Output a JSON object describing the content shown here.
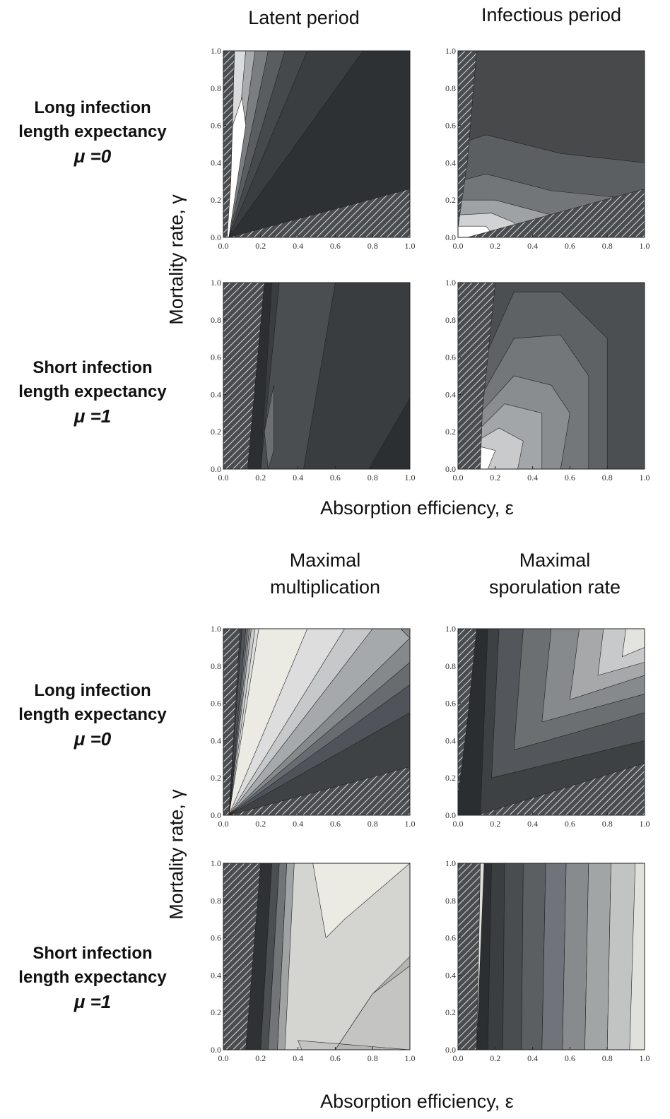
{
  "titles": {
    "latent": "Latent period",
    "infectious": "Infectious period",
    "maxmult": [
      "Maximal",
      "multiplication"
    ],
    "maxspor": [
      "Maximal",
      "sporulation rate"
    ]
  },
  "row_labels": {
    "long": [
      "Long infection",
      "length expectancy",
      "μ =0"
    ],
    "short": [
      "Short infection",
      "length expectancy",
      "μ =1"
    ]
  },
  "axis_labels": {
    "y_top": "Mortality rate, γ",
    "x_top": "Absorption efficiency, ε",
    "y_bottom": "Mortality rate, γ",
    "x_bottom": "Absorption efficiency, ε"
  },
  "chart_data": [
    {
      "type": "heatmap",
      "panel": "latent-long",
      "x_range": [
        0,
        1
      ],
      "y_range": [
        0,
        1
      ],
      "ticks": [
        "0.0",
        "0.2",
        "0.4",
        "0.6",
        "0.8",
        "1.0"
      ]
    },
    {
      "type": "heatmap",
      "panel": "infectious-long",
      "x_range": [
        0,
        1
      ],
      "y_range": [
        0,
        1
      ],
      "ticks": [
        "0.0",
        "0.2",
        "0.4",
        "0.6",
        "0.8",
        "1.0"
      ]
    },
    {
      "type": "heatmap",
      "panel": "latent-short",
      "x_range": [
        0,
        1
      ],
      "y_range": [
        0,
        1
      ],
      "ticks": [
        "0.0",
        "0.2",
        "0.4",
        "0.6",
        "0.8",
        "1.0"
      ]
    },
    {
      "type": "heatmap",
      "panel": "infectious-short",
      "x_range": [
        0,
        1
      ],
      "y_range": [
        0,
        1
      ],
      "ticks": [
        "0.0",
        "0.2",
        "0.4",
        "0.6",
        "0.8",
        "1.0"
      ]
    },
    {
      "type": "heatmap",
      "panel": "maxmult-long",
      "x_range": [
        0,
        1
      ],
      "y_range": [
        0,
        1
      ],
      "ticks": [
        "0.0",
        "0.2",
        "0.4",
        "0.6",
        "0.8",
        "1.0"
      ]
    },
    {
      "type": "heatmap",
      "panel": "maxspor-long",
      "x_range": [
        0,
        1
      ],
      "y_range": [
        0,
        1
      ],
      "ticks": [
        "0.0",
        "0.2",
        "0.4",
        "0.6",
        "0.8",
        "1.0"
      ]
    },
    {
      "type": "heatmap",
      "panel": "maxmult-short",
      "x_range": [
        0,
        1
      ],
      "y_range": [
        0,
        1
      ],
      "ticks": [
        "0.0",
        "0.2",
        "0.4",
        "0.6",
        "0.8",
        "1.0"
      ]
    },
    {
      "type": "heatmap",
      "panel": "maxspor-short",
      "x_range": [
        0,
        1
      ],
      "y_range": [
        0,
        1
      ],
      "ticks": [
        "0.0",
        "0.2",
        "0.4",
        "0.6",
        "0.8",
        "1.0"
      ]
    }
  ]
}
